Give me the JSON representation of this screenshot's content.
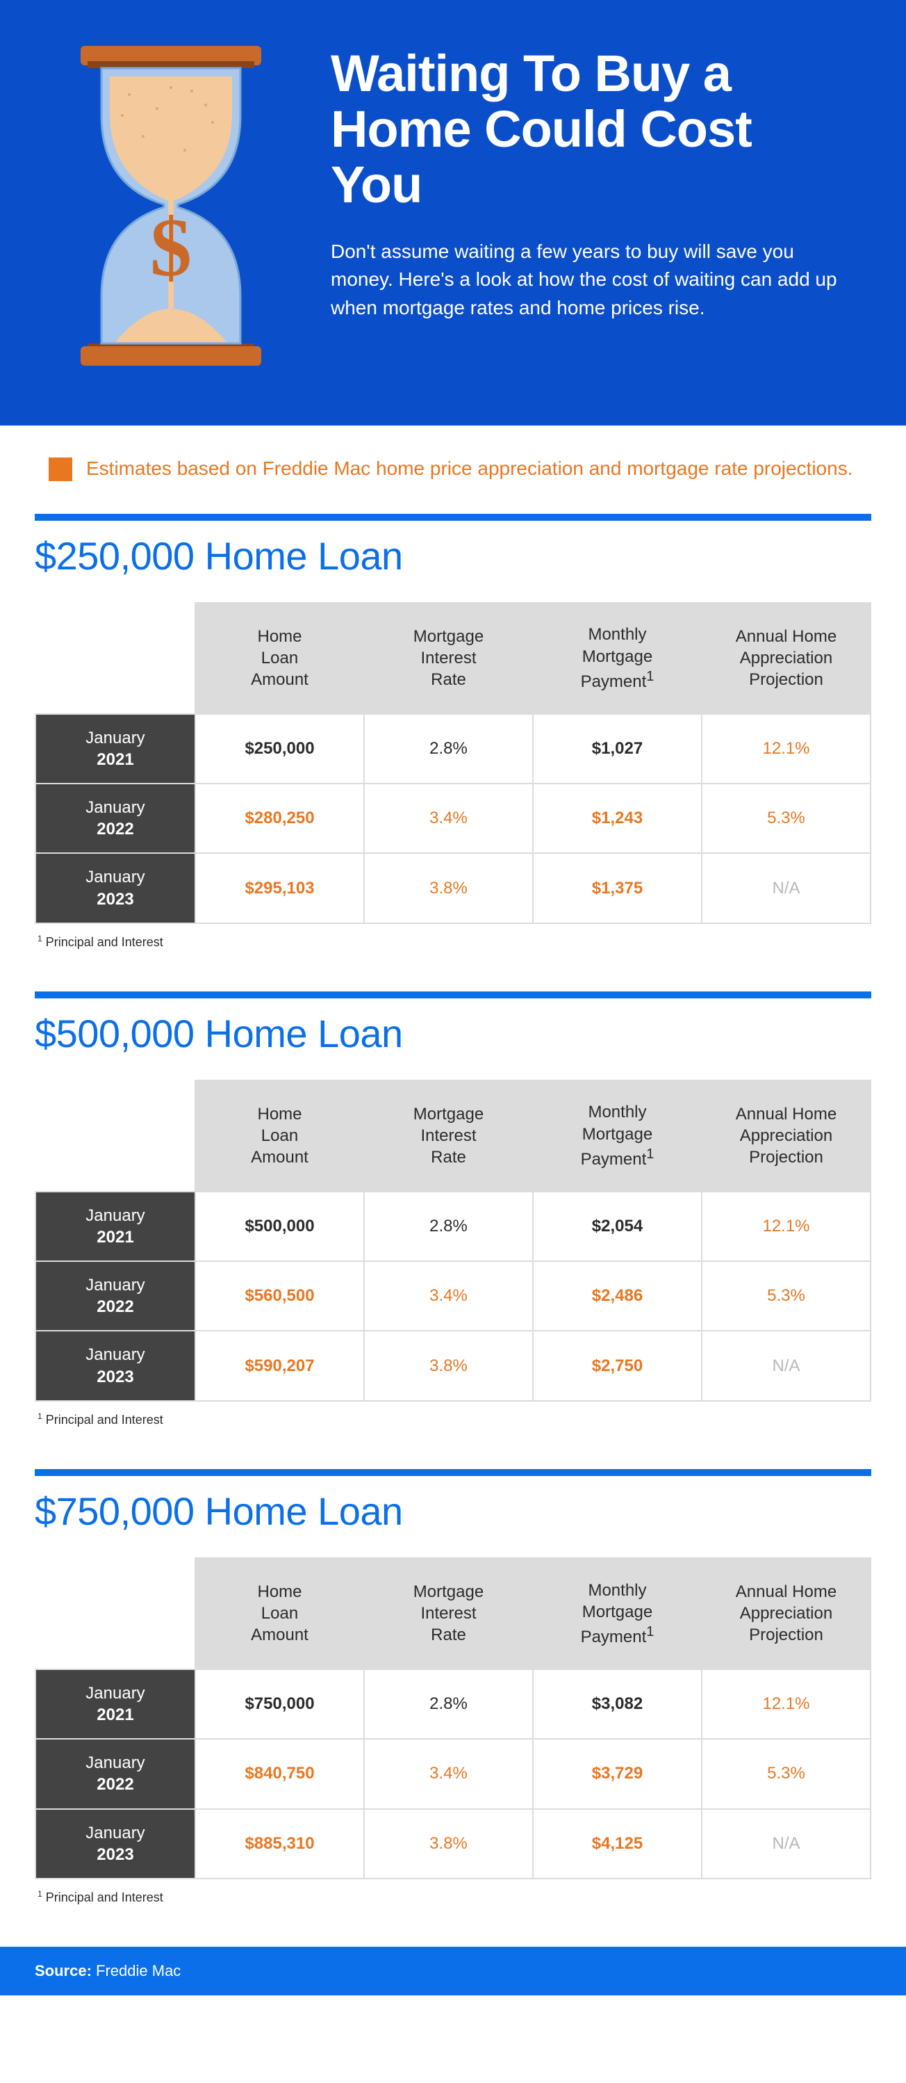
{
  "colors": {
    "hero_bg": "#0a4fc9",
    "accent_orange": "#e87722",
    "divider_blue": "#0a6fe8",
    "header_gray": "#dcdcdc",
    "row_dark": "#434343",
    "na_gray": "#b8b8b8",
    "text": "#2b2b2b",
    "white": "#ffffff"
  },
  "hero": {
    "title": "Waiting To Buy a Home Could Cost You",
    "subtitle": "Don't assume waiting a few years to buy will save you money. Here's a look at how the cost of waiting can add up when mortgage rates and home prices rise."
  },
  "estimate_note": "Estimates based on Freddie Mac home price appreciation and mortgage rate projections.",
  "column_headers": {
    "loan_amount": "Home Loan Amount",
    "rate": "Mortgage Interest Rate",
    "payment": "Monthly Mortgage Payment¹",
    "appreciation": "Annual Home Appreciation Projection"
  },
  "footnote": "¹ Principal and Interest",
  "sections": [
    {
      "title": "$250,000 Home Loan",
      "rows": [
        {
          "month": "January",
          "year": "2021",
          "loan": "$250,000",
          "rate": "2.8%",
          "payment": "$1,027",
          "appreciation": "12.1%",
          "style": "base"
        },
        {
          "month": "January",
          "year": "2022",
          "loan": "$280,250",
          "rate": "3.4%",
          "payment": "$1,243",
          "appreciation": "5.3%",
          "style": "orange"
        },
        {
          "month": "January",
          "year": "2023",
          "loan": "$295,103",
          "rate": "3.8%",
          "payment": "$1,375",
          "appreciation": "N/A",
          "style": "orange",
          "appr_na": true
        }
      ]
    },
    {
      "title": "$500,000 Home Loan",
      "rows": [
        {
          "month": "January",
          "year": "2021",
          "loan": "$500,000",
          "rate": "2.8%",
          "payment": "$2,054",
          "appreciation": "12.1%",
          "style": "base"
        },
        {
          "month": "January",
          "year": "2022",
          "loan": "$560,500",
          "rate": "3.4%",
          "payment": "$2,486",
          "appreciation": "5.3%",
          "style": "orange"
        },
        {
          "month": "January",
          "year": "2023",
          "loan": "$590,207",
          "rate": "3.8%",
          "payment": "$2,750",
          "appreciation": "N/A",
          "style": "orange",
          "appr_na": true
        }
      ]
    },
    {
      "title": "$750,000 Home Loan",
      "rows": [
        {
          "month": "January",
          "year": "2021",
          "loan": "$750,000",
          "rate": "2.8%",
          "payment": "$3,082",
          "appreciation": "12.1%",
          "style": "base"
        },
        {
          "month": "January",
          "year": "2022",
          "loan": "$840,750",
          "rate": "3.4%",
          "payment": "$3,729",
          "appreciation": "5.3%",
          "style": "orange"
        },
        {
          "month": "January",
          "year": "2023",
          "loan": "$885,310",
          "rate": "3.8%",
          "payment": "$4,125",
          "appreciation": "N/A",
          "style": "orange",
          "appr_na": true
        }
      ]
    }
  ],
  "source": {
    "label": "Source:",
    "value": " Freddie Mac"
  },
  "hourglass": {
    "frame_color": "#c96a2a",
    "glass_color": "#a9c8ec",
    "sand_color": "#f4c99c",
    "dollar_color": "#c96a2a"
  }
}
